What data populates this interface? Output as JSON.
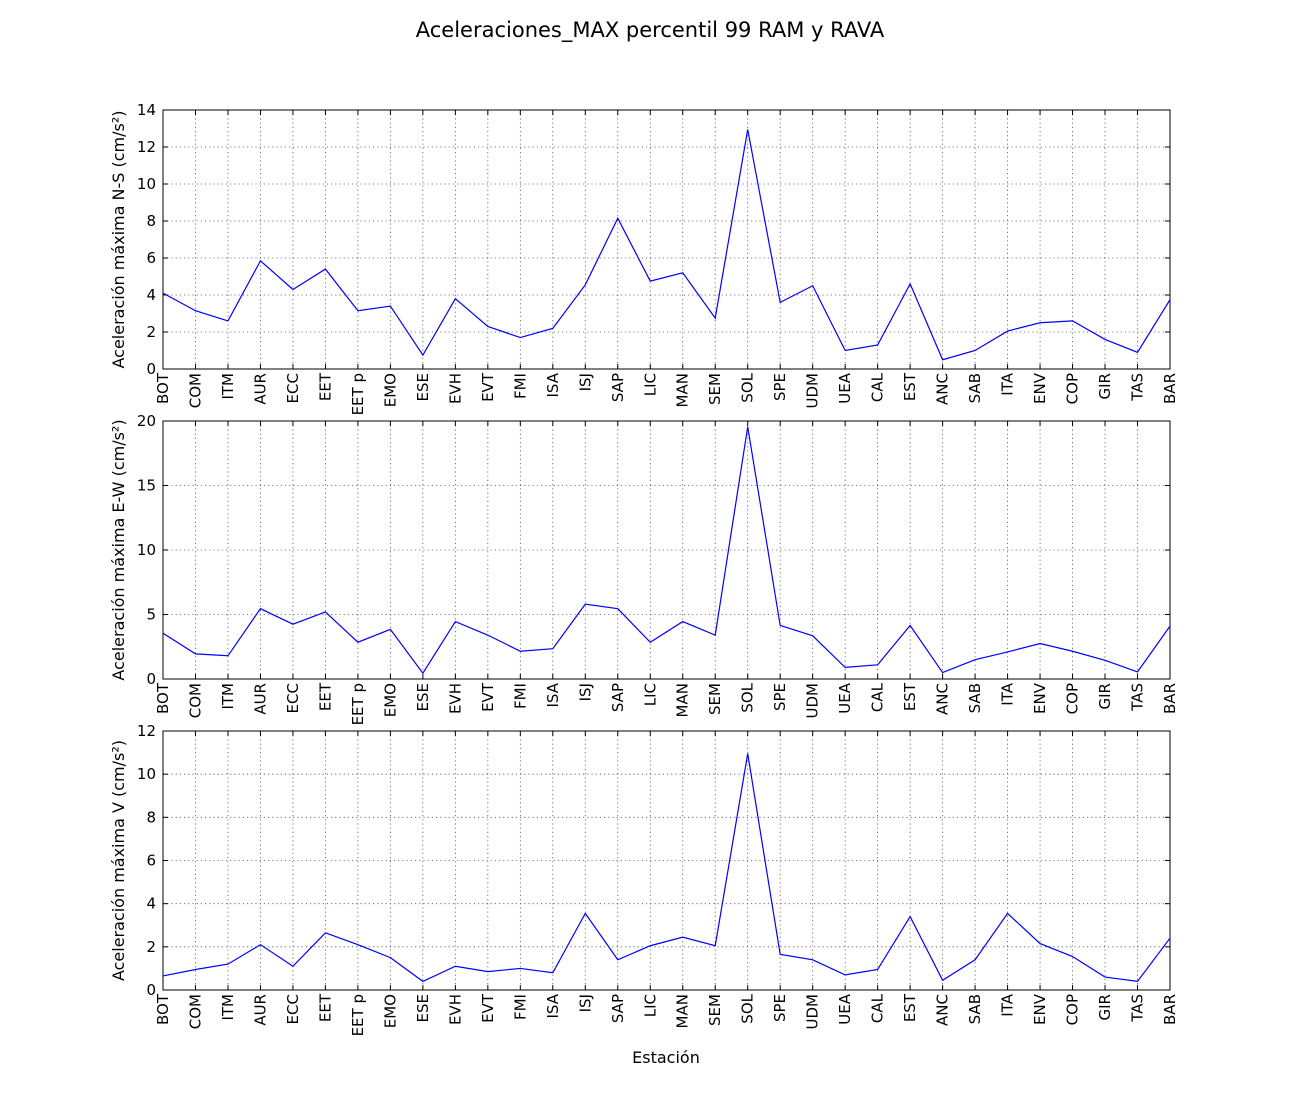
{
  "title": "Aceleraciones_MAX percentil 99 RAM y RAVA",
  "xlabel": "Estación",
  "line_color": "#0000ff",
  "chart_data": [
    {
      "type": "line",
      "ylabel": "Aceleración máxima N-S (cm/s²)",
      "ylim": [
        0,
        14
      ],
      "yticks": [
        0,
        2,
        4,
        6,
        8,
        10,
        12,
        14
      ],
      "grid": true,
      "categories": [
        "BOT",
        "COM",
        "ITM",
        "AUR",
        "ECC",
        "EET",
        "EET p",
        "EMO",
        "ESE",
        "EVH",
        "EVT",
        "FMI",
        "ISA",
        "ISJ",
        "SAP",
        "LIC",
        "MAN",
        "SEM",
        "SOL",
        "SPE",
        "UDM",
        "UEA",
        "CAL",
        "EST",
        "ANC",
        "SAB",
        "ITA",
        "ENV",
        "COP",
        "GIR",
        "TAS",
        "BAR"
      ],
      "values": [
        4.1,
        3.15,
        2.6,
        5.85,
        4.3,
        5.4,
        3.15,
        3.4,
        0.75,
        3.8,
        2.3,
        1.7,
        2.2,
        4.55,
        8.15,
        4.75,
        5.2,
        2.75,
        12.95,
        3.6,
        4.5,
        1.0,
        1.3,
        4.6,
        0.5,
        1.0,
        2.05,
        2.5,
        2.6,
        1.6,
        0.9,
        3.75
      ]
    },
    {
      "type": "line",
      "ylabel": "Aceleración máxima E-W (cm/s²)",
      "ylim": [
        0,
        20
      ],
      "yticks": [
        0,
        5,
        10,
        15,
        20
      ],
      "grid": true,
      "categories": [
        "BOT",
        "COM",
        "ITM",
        "AUR",
        "ECC",
        "EET",
        "EET p",
        "EMO",
        "ESE",
        "EVH",
        "EVT",
        "FMI",
        "ISA",
        "ISJ",
        "SAP",
        "LIC",
        "MAN",
        "SEM",
        "SOL",
        "SPE",
        "UDM",
        "UEA",
        "CAL",
        "EST",
        "ANC",
        "SAB",
        "ITA",
        "ENV",
        "COP",
        "GIR",
        "TAS",
        "BAR"
      ],
      "values": [
        3.55,
        1.95,
        1.8,
        5.45,
        4.25,
        5.2,
        2.85,
        3.85,
        0.45,
        4.45,
        3.4,
        2.15,
        2.35,
        5.8,
        5.45,
        2.85,
        4.45,
        3.4,
        19.55,
        4.15,
        3.35,
        0.9,
        1.1,
        4.15,
        0.5,
        1.5,
        2.1,
        2.75,
        2.15,
        1.45,
        0.55,
        4.1
      ]
    },
    {
      "type": "line",
      "ylabel": "Aceleración máxima V (cm/s²)",
      "ylim": [
        0,
        12
      ],
      "yticks": [
        0,
        2,
        4,
        6,
        8,
        10,
        12
      ],
      "grid": true,
      "categories": [
        "BOT",
        "COM",
        "ITM",
        "AUR",
        "ECC",
        "EET",
        "EET p",
        "EMO",
        "ESE",
        "EVH",
        "EVT",
        "FMI",
        "ISA",
        "ISJ",
        "SAP",
        "LIC",
        "MAN",
        "SEM",
        "SOL",
        "SPE",
        "UDM",
        "UEA",
        "CAL",
        "EST",
        "ANC",
        "SAB",
        "ITA",
        "ENV",
        "COP",
        "GIR",
        "TAS",
        "BAR"
      ],
      "values": [
        0.65,
        0.95,
        1.2,
        2.1,
        1.1,
        2.65,
        2.1,
        1.5,
        0.4,
        1.1,
        0.85,
        1.0,
        0.8,
        3.55,
        1.4,
        2.05,
        2.45,
        2.05,
        10.95,
        1.65,
        1.4,
        0.7,
        0.95,
        3.4,
        0.45,
        1.4,
        3.55,
        2.15,
        1.55,
        0.6,
        0.4,
        2.4
      ]
    }
  ]
}
